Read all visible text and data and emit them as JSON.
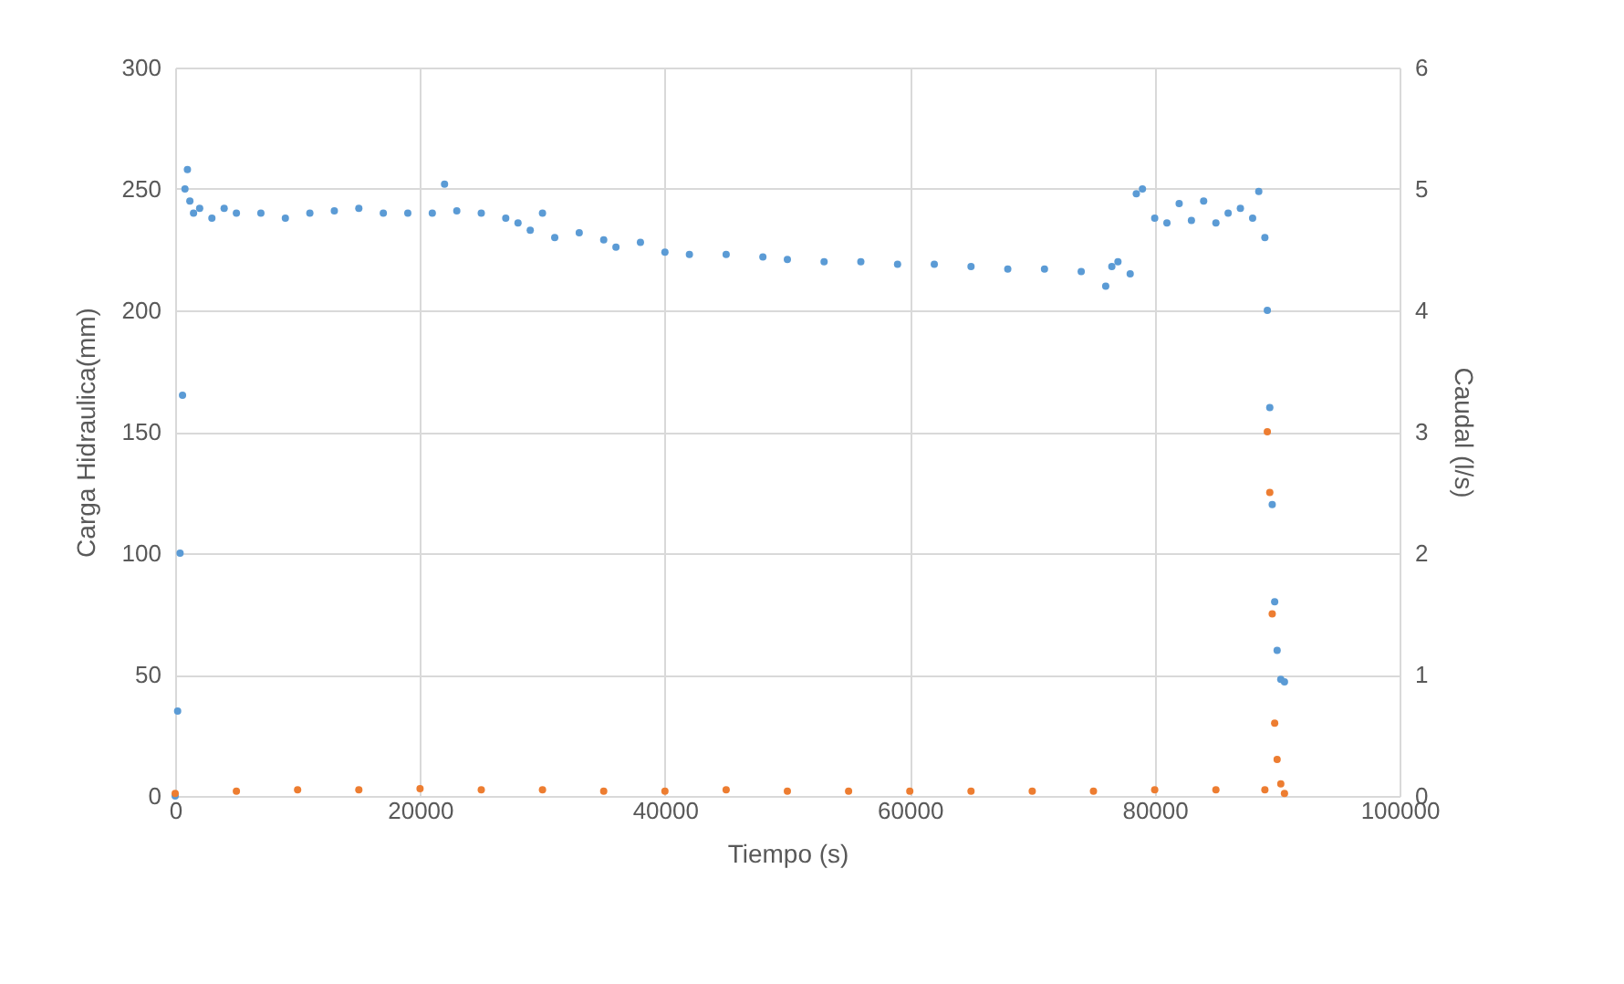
{
  "chart_data": {
    "type": "scatter",
    "xlabel": "Tiempo (s)",
    "ylabel": "Carga Hidraulica(mm)",
    "y2label": "Caudal (l/s)",
    "xlim": [
      0,
      100000
    ],
    "xticks": [
      0,
      20000,
      40000,
      60000,
      80000,
      100000
    ],
    "ylim": [
      0,
      300
    ],
    "yticks": [
      0,
      50,
      100,
      150,
      200,
      250,
      300
    ],
    "y2lim": [
      0,
      6
    ],
    "y2ticks": [
      0,
      1,
      2,
      3,
      4,
      5,
      6
    ],
    "grid": true,
    "marker": "circle",
    "series": [
      {
        "color": "#5b9bd5",
        "x": [
          0,
          200,
          400,
          600,
          800,
          1000,
          1200,
          1500,
          2000,
          3000,
          4000,
          5000,
          7000,
          9000,
          11000,
          13000,
          15000,
          17000,
          19000,
          21000,
          22000,
          23000,
          25000,
          27000,
          28000,
          29000,
          30000,
          31000,
          33000,
          35000,
          36000,
          38000,
          40000,
          42000,
          45000,
          48000,
          50000,
          53000,
          56000,
          59000,
          62000,
          65000,
          68000,
          71000,
          74000,
          76000,
          76500,
          77000,
          78000,
          78500,
          79000,
          80000,
          81000,
          82000,
          83000,
          84000,
          85000,
          86000,
          87000,
          88000,
          88500,
          89000,
          89200,
          89400,
          89600,
          89800,
          90000,
          90300,
          90600
        ],
        "values": [
          0,
          35,
          100,
          165,
          250,
          258,
          245,
          240,
          242,
          238,
          242,
          240,
          240,
          238,
          240,
          241,
          242,
          240,
          240,
          240,
          252,
          241,
          240,
          238,
          236,
          233,
          240,
          230,
          232,
          229,
          226,
          228,
          224,
          223,
          223,
          222,
          221,
          220,
          220,
          219,
          219,
          218,
          217,
          217,
          216,
          210,
          218,
          220,
          215,
          248,
          250,
          238,
          236,
          244,
          237,
          245,
          236,
          240,
          242,
          238,
          249,
          230,
          200,
          160,
          120,
          80,
          60,
          48,
          47
        ]
      },
      {
        "color": "#ed7d31",
        "axis": "y2",
        "x": [
          0,
          5000,
          10000,
          15000,
          20000,
          25000,
          30000,
          35000,
          40000,
          45000,
          50000,
          55000,
          60000,
          65000,
          70000,
          75000,
          80000,
          85000,
          89000,
          89200,
          89400,
          89600,
          89800,
          90000,
          90300,
          90600
        ],
        "values": [
          0.02,
          0.04,
          0.05,
          0.05,
          0.06,
          0.05,
          0.05,
          0.04,
          0.04,
          0.05,
          0.04,
          0.04,
          0.04,
          0.04,
          0.04,
          0.04,
          0.05,
          0.05,
          0.05,
          3.0,
          2.5,
          1.5,
          0.6,
          0.3,
          0.1,
          0.02
        ]
      }
    ]
  }
}
